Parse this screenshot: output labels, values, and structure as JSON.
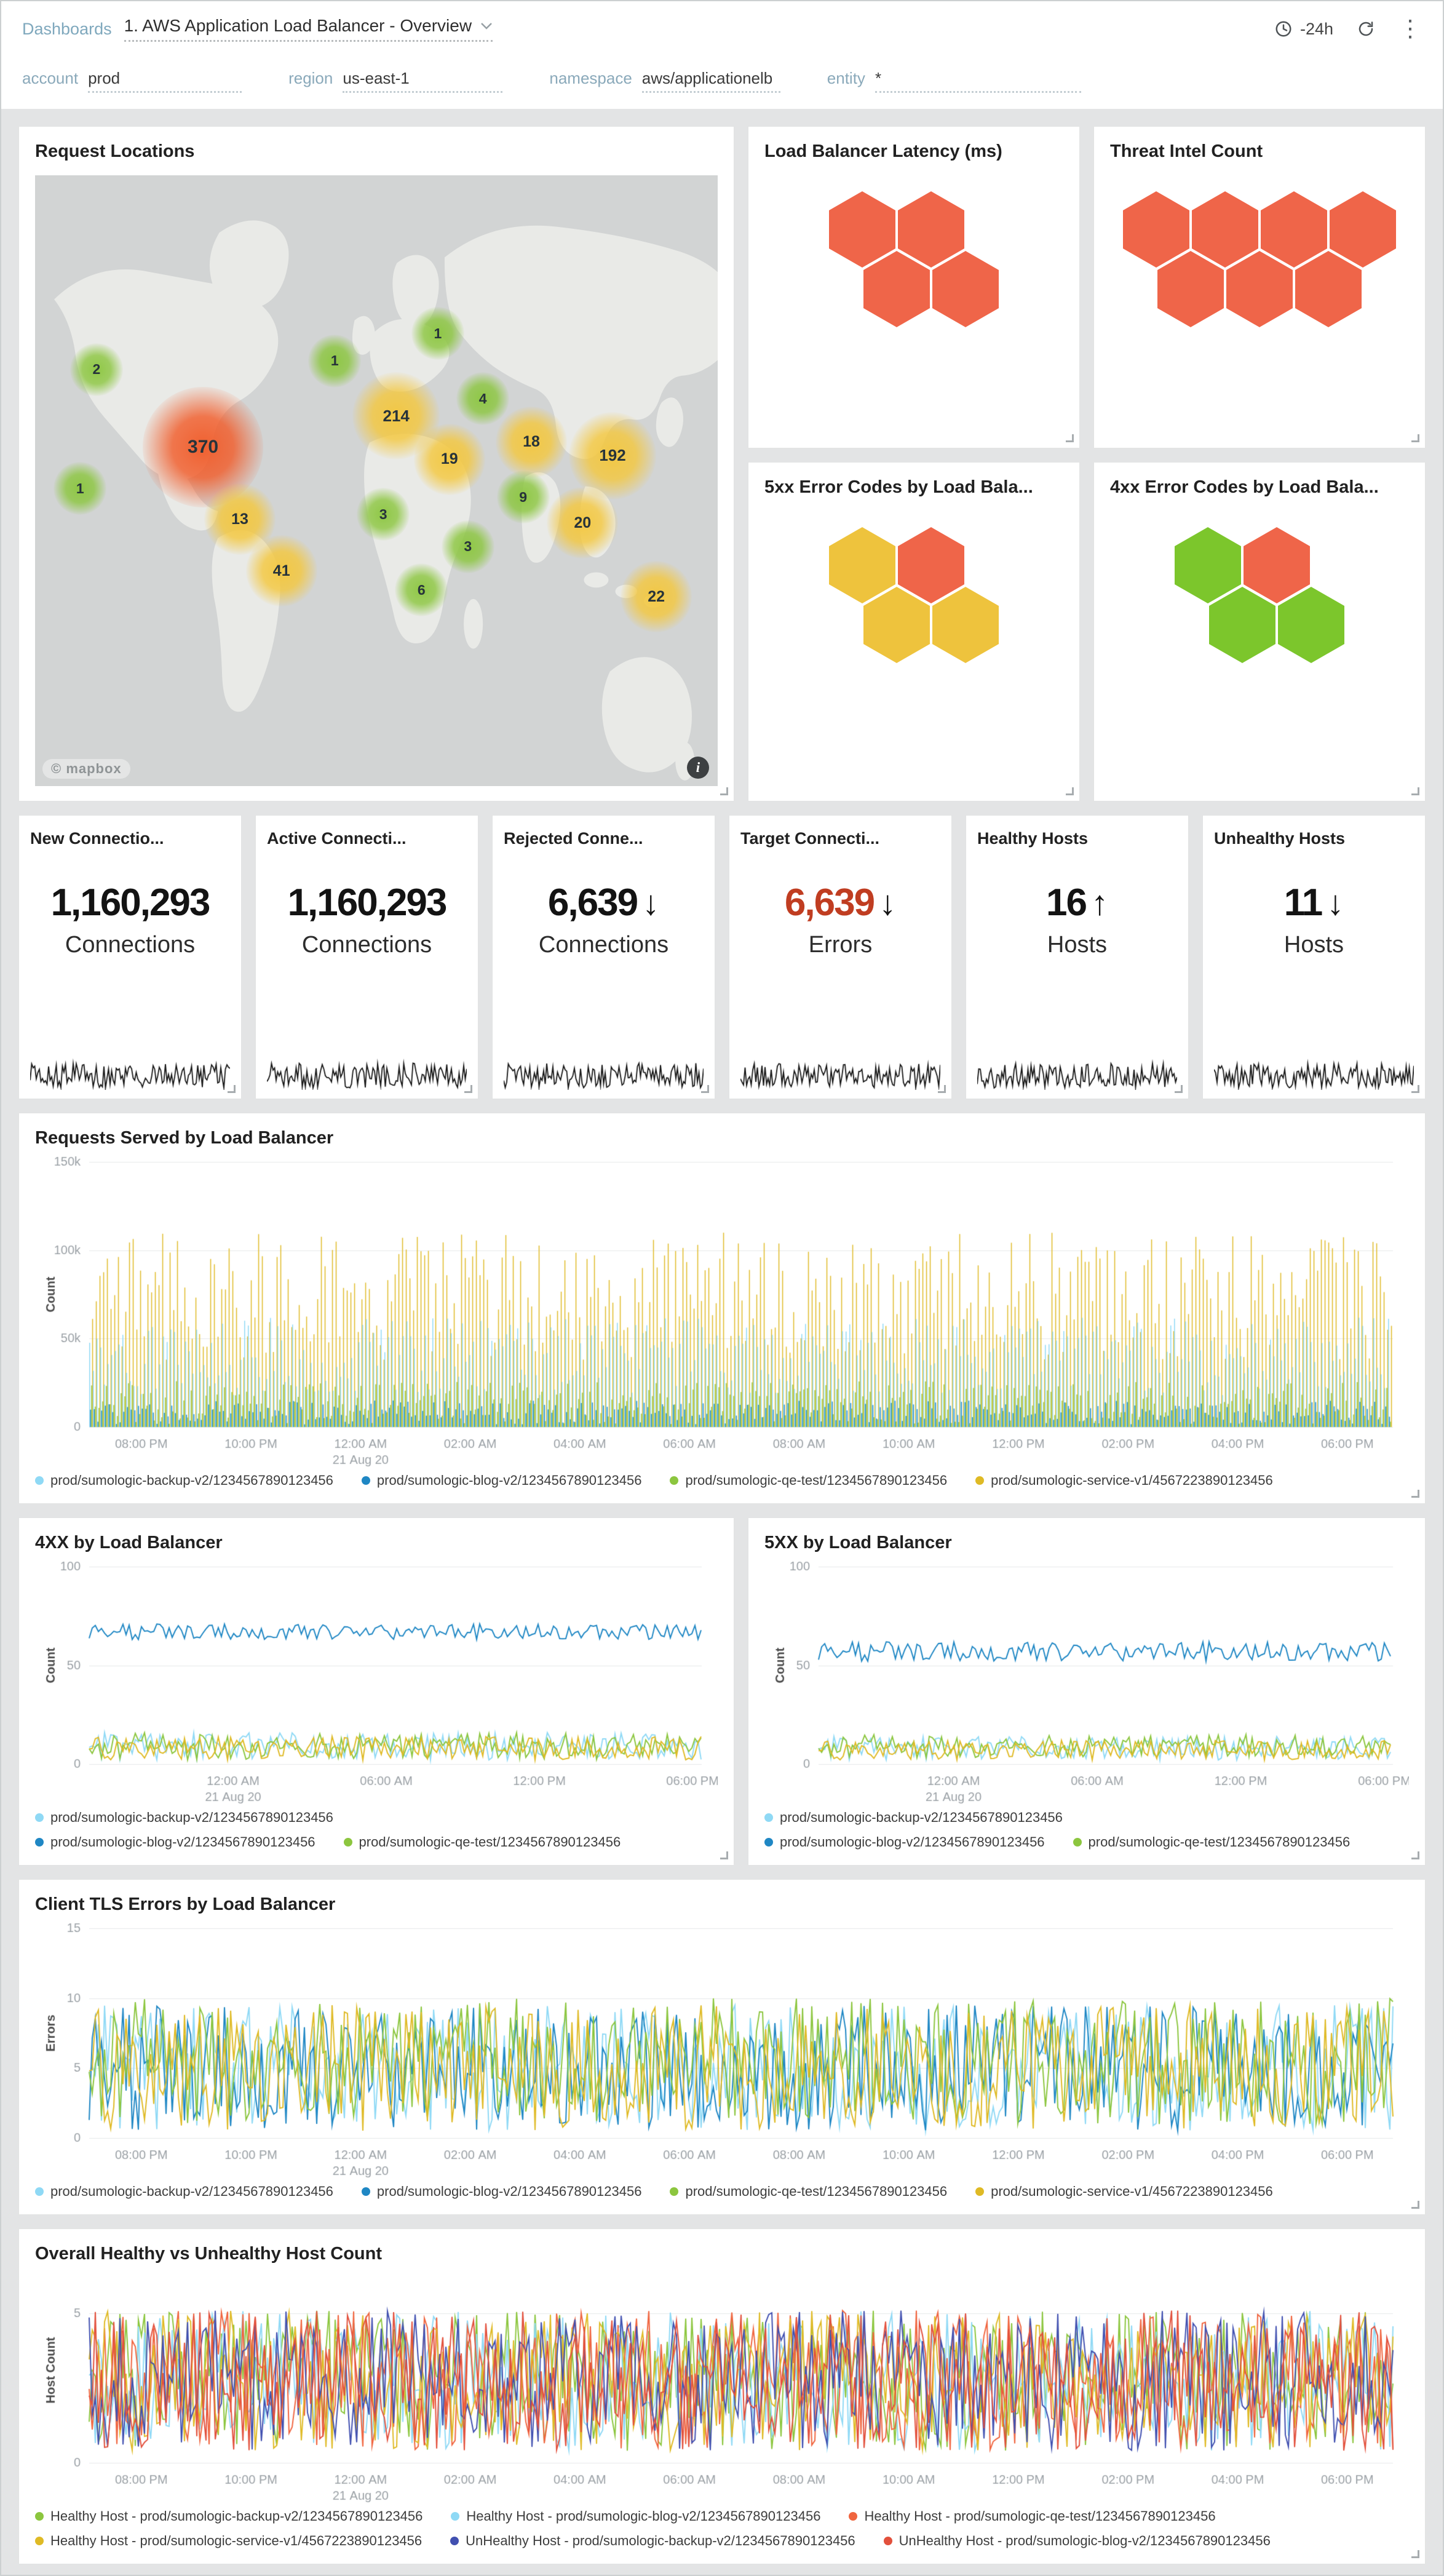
{
  "colors": {
    "lightblue": "#8fd9f5",
    "blue": "#1f87c4",
    "green": "#8cc63f",
    "yellow": "#dfba25",
    "orange": "#f0653f",
    "red": "#e2503c",
    "indigo": "#4150b0"
  },
  "header": {
    "breadcrumb": "Dashboards",
    "title": "1. AWS Application Load Balancer - Overview",
    "time_range": "-24h"
  },
  "filters": [
    {
      "label": "account",
      "value": "prod"
    },
    {
      "label": "region",
      "value": "us-east-1"
    },
    {
      "label": "namespace",
      "value": "aws/applicationelb"
    },
    {
      "label": "entity",
      "value": "*"
    }
  ],
  "map": {
    "title": "Request Locations",
    "attribution": "© mapbox",
    "info_icon": "i",
    "bubbles": [
      {
        "value": "2",
        "color": "green",
        "size": "sm",
        "x": 9.0,
        "y": 31.8
      },
      {
        "value": "1",
        "color": "green",
        "size": "sm",
        "x": 6.6,
        "y": 51.3
      },
      {
        "value": "370",
        "color": "red",
        "size": "xl",
        "x": 24.6,
        "y": 44.5
      },
      {
        "value": "13",
        "color": "yellow",
        "size": "md",
        "x": 30.0,
        "y": 56.3
      },
      {
        "value": "41",
        "color": "yellow",
        "size": "md",
        "x": 36.1,
        "y": 64.8
      },
      {
        "value": "1",
        "color": "green",
        "size": "sm",
        "x": 43.9,
        "y": 30.4
      },
      {
        "value": "214",
        "color": "yellow",
        "size": "lg",
        "x": 52.9,
        "y": 39.4
      },
      {
        "value": "19",
        "color": "yellow",
        "size": "md",
        "x": 60.7,
        "y": 46.5
      },
      {
        "value": "3",
        "color": "green",
        "size": "sm",
        "x": 51.0,
        "y": 55.5
      },
      {
        "value": "6",
        "color": "green",
        "size": "sm",
        "x": 56.6,
        "y": 67.9
      },
      {
        "value": "3",
        "color": "green",
        "size": "sm",
        "x": 63.4,
        "y": 60.8
      },
      {
        "value": "1",
        "color": "green",
        "size": "sm",
        "x": 59.0,
        "y": 25.9
      },
      {
        "value": "4",
        "color": "green",
        "size": "sm",
        "x": 65.6,
        "y": 36.6
      },
      {
        "value": "18",
        "color": "yellow",
        "size": "md",
        "x": 72.7,
        "y": 43.7
      },
      {
        "value": "9",
        "color": "green",
        "size": "sm",
        "x": 71.5,
        "y": 52.7
      },
      {
        "value": "20",
        "color": "yellow",
        "size": "md",
        "x": 80.2,
        "y": 56.9
      },
      {
        "value": "192",
        "color": "yellow",
        "size": "lg",
        "x": 84.6,
        "y": 45.9
      },
      {
        "value": "22",
        "color": "yellow",
        "size": "md",
        "x": 91.0,
        "y": 69.0
      }
    ]
  },
  "hex_panels": [
    {
      "title": "Load Balancer Latency (ms)",
      "rows": [
        [
          "orange",
          "orange"
        ],
        [
          "orange",
          "orange"
        ]
      ]
    },
    {
      "title": "Threat Intel Count",
      "rows": [
        [
          "orange",
          "orange",
          "orange",
          "orange"
        ],
        [
          "orange",
          "orange",
          "orange"
        ]
      ]
    },
    {
      "title": "5xx Error Codes by Load Bala...",
      "rows": [
        [
          "yellow",
          "orange"
        ],
        [
          "yellow",
          "yellow"
        ]
      ]
    },
    {
      "title": "4xx Error Codes by Load Bala...",
      "rows": [
        [
          "green",
          "orange"
        ],
        [
          "green",
          "green"
        ]
      ]
    }
  ],
  "stats": [
    {
      "title": "New Connectio...",
      "value": "1,160,293",
      "arrow": "",
      "unit": "Connections",
      "value_color": "dark"
    },
    {
      "title": "Active Connecti...",
      "value": "1,160,293",
      "arrow": "",
      "unit": "Connections",
      "value_color": "dark"
    },
    {
      "title": "Rejected Conne...",
      "value": "6,639",
      "arrow": "down",
      "unit": "Connections",
      "value_color": "dark"
    },
    {
      "title": "Target Connecti...",
      "value": "6,639",
      "arrow": "down",
      "unit": "Errors",
      "value_color": "red"
    },
    {
      "title": "Healthy Hosts",
      "value": "16",
      "arrow": "up",
      "unit": "Hosts",
      "value_color": "dark"
    },
    {
      "title": "Unhealthy Hosts",
      "value": "11",
      "arrow": "down",
      "unit": "Hosts",
      "value_color": "dark"
    }
  ],
  "chart_data": [
    {
      "id": "chart-requests",
      "type": "bar",
      "title": "Requests Served by Load Balancer",
      "ylabel": "Count",
      "ymin": 0,
      "ymax": 150000,
      "yticks": [
        {
          "v": 0,
          "label": "0"
        },
        {
          "v": 50000,
          "label": "50k"
        },
        {
          "v": 100000,
          "label": "100k"
        },
        {
          "v": 150000,
          "label": "150k"
        }
      ],
      "xticks": [
        "08:00 PM",
        "10:00 PM",
        "12:00 AM",
        "02:00 AM",
        "04:00 AM",
        "06:00 AM",
        "08:00 AM",
        "10:00 AM",
        "12:00 PM",
        "02:00 PM",
        "04:00 PM",
        "06:00 PM"
      ],
      "date_tick": {
        "index": 2,
        "label": "21 Aug 20"
      },
      "xstart": 0.04,
      "xend": 0.965,
      "series": [
        {
          "name": "prod/sumologic-backup-v2/1234567890123456",
          "color": "lightblue",
          "min": 18000,
          "max": 62000
        },
        {
          "name": "prod/sumologic-blog-v2/1234567890123456",
          "color": "blue",
          "min": 1500,
          "max": 15000
        },
        {
          "name": "prod/sumologic-qe-test/1234567890123456",
          "color": "green",
          "min": 1500,
          "max": 26000
        },
        {
          "name": "prod/sumologic-service-v1/4567223890123456",
          "color": "yellow",
          "min": 38000,
          "max": 110000
        }
      ],
      "legend_rows": [
        [
          {
            "label": "prod/sumologic-backup-v2/1234567890123456",
            "color": "lightblue"
          },
          {
            "label": "prod/sumologic-blog-v2/1234567890123456",
            "color": "blue"
          },
          {
            "label": "prod/sumologic-qe-test/1234567890123456",
            "color": "green"
          },
          {
            "label": "prod/sumologic-service-v1/4567223890123456",
            "color": "yellow"
          }
        ]
      ]
    },
    {
      "id": "chart-4xx",
      "type": "line",
      "title": "4XX by Load Balancer",
      "ylabel": "Count",
      "ymin": 0,
      "ymax": 100,
      "yticks": [
        {
          "v": 0,
          "label": "0"
        },
        {
          "v": 50,
          "label": "50"
        },
        {
          "v": 100,
          "label": "100"
        }
      ],
      "xticks": [
        "12:00 AM",
        "06:00 AM",
        "12:00 PM",
        "06:00 PM"
      ],
      "date_tick": {
        "index": 0,
        "label": "21 Aug 20"
      },
      "xstart": 0.235,
      "xend": 0.985,
      "series": [
        {
          "name": "prod/sumologic-backup-v2/1234567890123456",
          "color": "lightblue",
          "base": 9,
          "amp": 7,
          "floor": 1
        },
        {
          "name": "prod/sumologic-blog-v2/1234567890123456",
          "color": "blue",
          "base": 67,
          "amp": 4
        },
        {
          "name": "prod/sumologic-qe-test/1234567890123456",
          "color": "green",
          "base": 9,
          "amp": 7,
          "floor": 1
        },
        {
          "name": "prod/sumologic-service-v1/4567223890123456",
          "color": "yellow",
          "base": 8,
          "amp": 6,
          "floor": 1
        }
      ],
      "legend_rows": [
        [
          {
            "label": "prod/sumologic-backup-v2/1234567890123456",
            "color": "lightblue"
          }
        ],
        [
          {
            "label": "prod/sumologic-blog-v2/1234567890123456",
            "color": "blue"
          },
          {
            "label": "prod/sumologic-qe-test/1234567890123456",
            "color": "green"
          }
        ]
      ]
    },
    {
      "id": "chart-5xx",
      "type": "line",
      "title": "5XX by Load Balancer",
      "ylabel": "Count",
      "ymin": 0,
      "ymax": 100,
      "yticks": [
        {
          "v": 0,
          "label": "0"
        },
        {
          "v": 50,
          "label": "50"
        },
        {
          "v": 100,
          "label": "100"
        }
      ],
      "xticks": [
        "12:00 AM",
        "06:00 AM",
        "12:00 PM",
        "06:00 PM"
      ],
      "date_tick": {
        "index": 0,
        "label": "21 Aug 20"
      },
      "xstart": 0.235,
      "xend": 0.985,
      "series": [
        {
          "name": "prod/sumologic-backup-v2/1234567890123456",
          "color": "lightblue",
          "base": 8,
          "amp": 6,
          "floor": 1
        },
        {
          "name": "prod/sumologic-blog-v2/1234567890123456",
          "color": "blue",
          "base": 57,
          "amp": 5
        },
        {
          "name": "prod/sumologic-qe-test/1234567890123456",
          "color": "green",
          "base": 9,
          "amp": 6,
          "floor": 1
        },
        {
          "name": "prod/sumologic-service-v1/4567223890123456",
          "color": "yellow",
          "base": 7,
          "amp": 5,
          "floor": 1
        }
      ],
      "legend_rows": [
        [
          {
            "label": "prod/sumologic-backup-v2/1234567890123456",
            "color": "lightblue"
          }
        ],
        [
          {
            "label": "prod/sumologic-blog-v2/1234567890123456",
            "color": "blue"
          },
          {
            "label": "prod/sumologic-qe-test/1234567890123456",
            "color": "green"
          }
        ]
      ]
    },
    {
      "id": "chart-tls",
      "type": "line",
      "title": "Client TLS Errors by Load Balancer",
      "ylabel": "Errors",
      "ymin": 0,
      "ymax": 15,
      "yticks": [
        {
          "v": 0,
          "label": "0"
        },
        {
          "v": 5,
          "label": "5"
        },
        {
          "v": 10,
          "label": "10"
        },
        {
          "v": 15,
          "label": "15"
        }
      ],
      "xticks": [
        "08:00 PM",
        "10:00 PM",
        "12:00 AM",
        "02:00 AM",
        "04:00 AM",
        "06:00 AM",
        "08:00 AM",
        "10:00 AM",
        "12:00 PM",
        "02:00 PM",
        "04:00 PM",
        "06:00 PM"
      ],
      "date_tick": {
        "index": 2,
        "label": "21 Aug 20"
      },
      "xstart": 0.04,
      "xend": 0.965,
      "series": [
        {
          "name": "prod/sumologic-backup-v2/1234567890123456",
          "color": "lightblue",
          "base": 5,
          "amp": 4.5,
          "floor": 0.4,
          "cap": 10.5
        },
        {
          "name": "prod/sumologic-blog-v2/1234567890123456",
          "color": "blue",
          "base": 5,
          "amp": 4.5,
          "floor": 0.4,
          "cap": 10.5
        },
        {
          "name": "prod/sumologic-qe-test/1234567890123456",
          "color": "green",
          "base": 5.5,
          "amp": 4.5,
          "floor": 0.4,
          "cap": 10.5
        },
        {
          "name": "prod/sumologic-service-v1/4567223890123456",
          "color": "yellow",
          "base": 5,
          "amp": 4.5,
          "floor": 0.4,
          "cap": 10.5
        }
      ],
      "legend_rows": [
        [
          {
            "label": "prod/sumologic-backup-v2/1234567890123456",
            "color": "lightblue"
          },
          {
            "label": "prod/sumologic-blog-v2/1234567890123456",
            "color": "blue"
          },
          {
            "label": "prod/sumologic-qe-test/1234567890123456",
            "color": "green"
          },
          {
            "label": "prod/sumologic-service-v1/4567223890123456",
            "color": "yellow"
          }
        ]
      ]
    },
    {
      "id": "chart-hosts",
      "type": "line",
      "title": "Overall Healthy vs Unhealthy Host Count",
      "ylabel": "Host Count",
      "ymin": 0,
      "ymax": 6.2,
      "yticks": [
        {
          "v": 0,
          "label": "0"
        },
        {
          "v": 5,
          "label": "5"
        }
      ],
      "xticks": [
        "08:00 PM",
        "10:00 PM",
        "12:00 AM",
        "02:00 AM",
        "04:00 AM",
        "06:00 AM",
        "08:00 AM",
        "10:00 AM",
        "12:00 PM",
        "02:00 PM",
        "04:00 PM",
        "06:00 PM"
      ],
      "date_tick": {
        "index": 2,
        "label": "21 Aug 20"
      },
      "xstart": 0.04,
      "xend": 0.965,
      "series": [
        {
          "name": "Healthy Host - prod/sumologic-backup-v2/1234567890123456",
          "color": "green",
          "min": 0.4,
          "max": 5.1
        },
        {
          "name": "Healthy Host - prod/sumologic-blog-v2/1234567890123456",
          "color": "lightblue",
          "min": 0.4,
          "max": 5.1
        },
        {
          "name": "Healthy Host - prod/sumologic-qe-test/1234567890123456",
          "color": "orange",
          "min": 0.4,
          "max": 5.1
        },
        {
          "name": "Healthy Host - prod/sumologic-service-v1/4567223890123456",
          "color": "yellow",
          "min": 0.4,
          "max": 5.1
        },
        {
          "name": "UnHealthy Host - prod/sumologic-backup-v2/1234567890123456",
          "color": "indigo",
          "min": 0.4,
          "max": 5.1
        },
        {
          "name": "UnHealthy Host - prod/sumologic-blog-v2/1234567890123456",
          "color": "red",
          "min": 0.4,
          "max": 5.1
        }
      ],
      "legend_rows": [
        [
          {
            "label": "Healthy Host - prod/sumologic-backup-v2/1234567890123456",
            "color": "green"
          },
          {
            "label": "Healthy Host - prod/sumologic-blog-v2/1234567890123456",
            "color": "lightblue"
          },
          {
            "label": "Healthy Host - prod/sumologic-qe-test/1234567890123456",
            "color": "orange"
          }
        ],
        [
          {
            "label": "Healthy Host - prod/sumologic-service-v1/4567223890123456",
            "color": "yellow"
          },
          {
            "label": "UnHealthy Host - prod/sumologic-backup-v2/1234567890123456",
            "color": "indigo"
          },
          {
            "label": "UnHealthy Host - prod/sumologic-blog-v2/1234567890123456",
            "color": "red"
          }
        ]
      ]
    }
  ]
}
